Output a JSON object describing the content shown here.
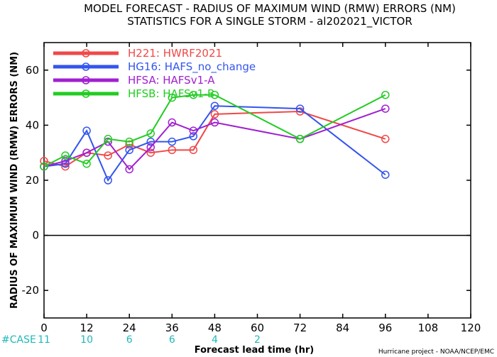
{
  "title_line1": "MODEL FORECAST - RADIUS OF MAXIMUM WIND (RMW) ERRORS (NM)",
  "title_line2": "STATISTICS FOR A SINGLE STORM - al202021_VICTOR",
  "credit": "Hurricane project - NOAA/NCEP/EMC",
  "chart_data": {
    "type": "line",
    "xlabel": "Forecast lead time (hr)",
    "ylabel": "RADIUS OF MAXIMUM WIND (RMW) ERRORS (NM)",
    "xlim": [
      0,
      120
    ],
    "ylim": [
      -30,
      70
    ],
    "xticks": [
      0,
      12,
      24,
      36,
      48,
      60,
      72,
      84,
      96,
      108,
      120
    ],
    "yticks": [
      -20,
      0,
      20,
      40,
      60
    ],
    "zero_line": true,
    "legend_position": "top-left",
    "series": [
      {
        "name": "H221: HWRF2021",
        "color": "#f04848",
        "x": [
          0,
          6,
          12,
          18,
          24,
          30,
          36,
          42,
          48,
          72,
          96
        ],
        "y": [
          27,
          25,
          30,
          29,
          33,
          30,
          31,
          31,
          44,
          45,
          35
        ]
      },
      {
        "name": "HG16: HAFS_no_change",
        "color": "#3355ee",
        "x": [
          0,
          6,
          12,
          18,
          24,
          30,
          36,
          42,
          48,
          72,
          96
        ],
        "y": [
          25,
          26,
          38,
          20,
          31,
          34,
          34,
          36,
          47,
          46,
          22
        ]
      },
      {
        "name": "HFSA: HAFSv1-A",
        "color": "#a020d0",
        "x": [
          0,
          6,
          12,
          18,
          24,
          30,
          36,
          42,
          48,
          72,
          96
        ],
        "y": [
          25,
          27,
          30,
          34,
          24,
          32,
          41,
          38,
          41,
          35,
          46
        ]
      },
      {
        "name": "HFSB: HAFSv1-B",
        "color": "#22cc22",
        "x": [
          0,
          6,
          12,
          18,
          24,
          30,
          36,
          42,
          48,
          72,
          96
        ],
        "y": [
          25,
          29,
          26,
          35,
          34,
          37,
          50,
          51,
          51,
          35,
          51
        ]
      }
    ],
    "case_label": "#CASE",
    "case_counts": [
      {
        "x": 0,
        "n": "11"
      },
      {
        "x": 12,
        "n": "10"
      },
      {
        "x": 24,
        "n": "6"
      },
      {
        "x": 36,
        "n": "6"
      },
      {
        "x": 48,
        "n": "4"
      },
      {
        "x": 60,
        "n": "2"
      }
    ]
  }
}
